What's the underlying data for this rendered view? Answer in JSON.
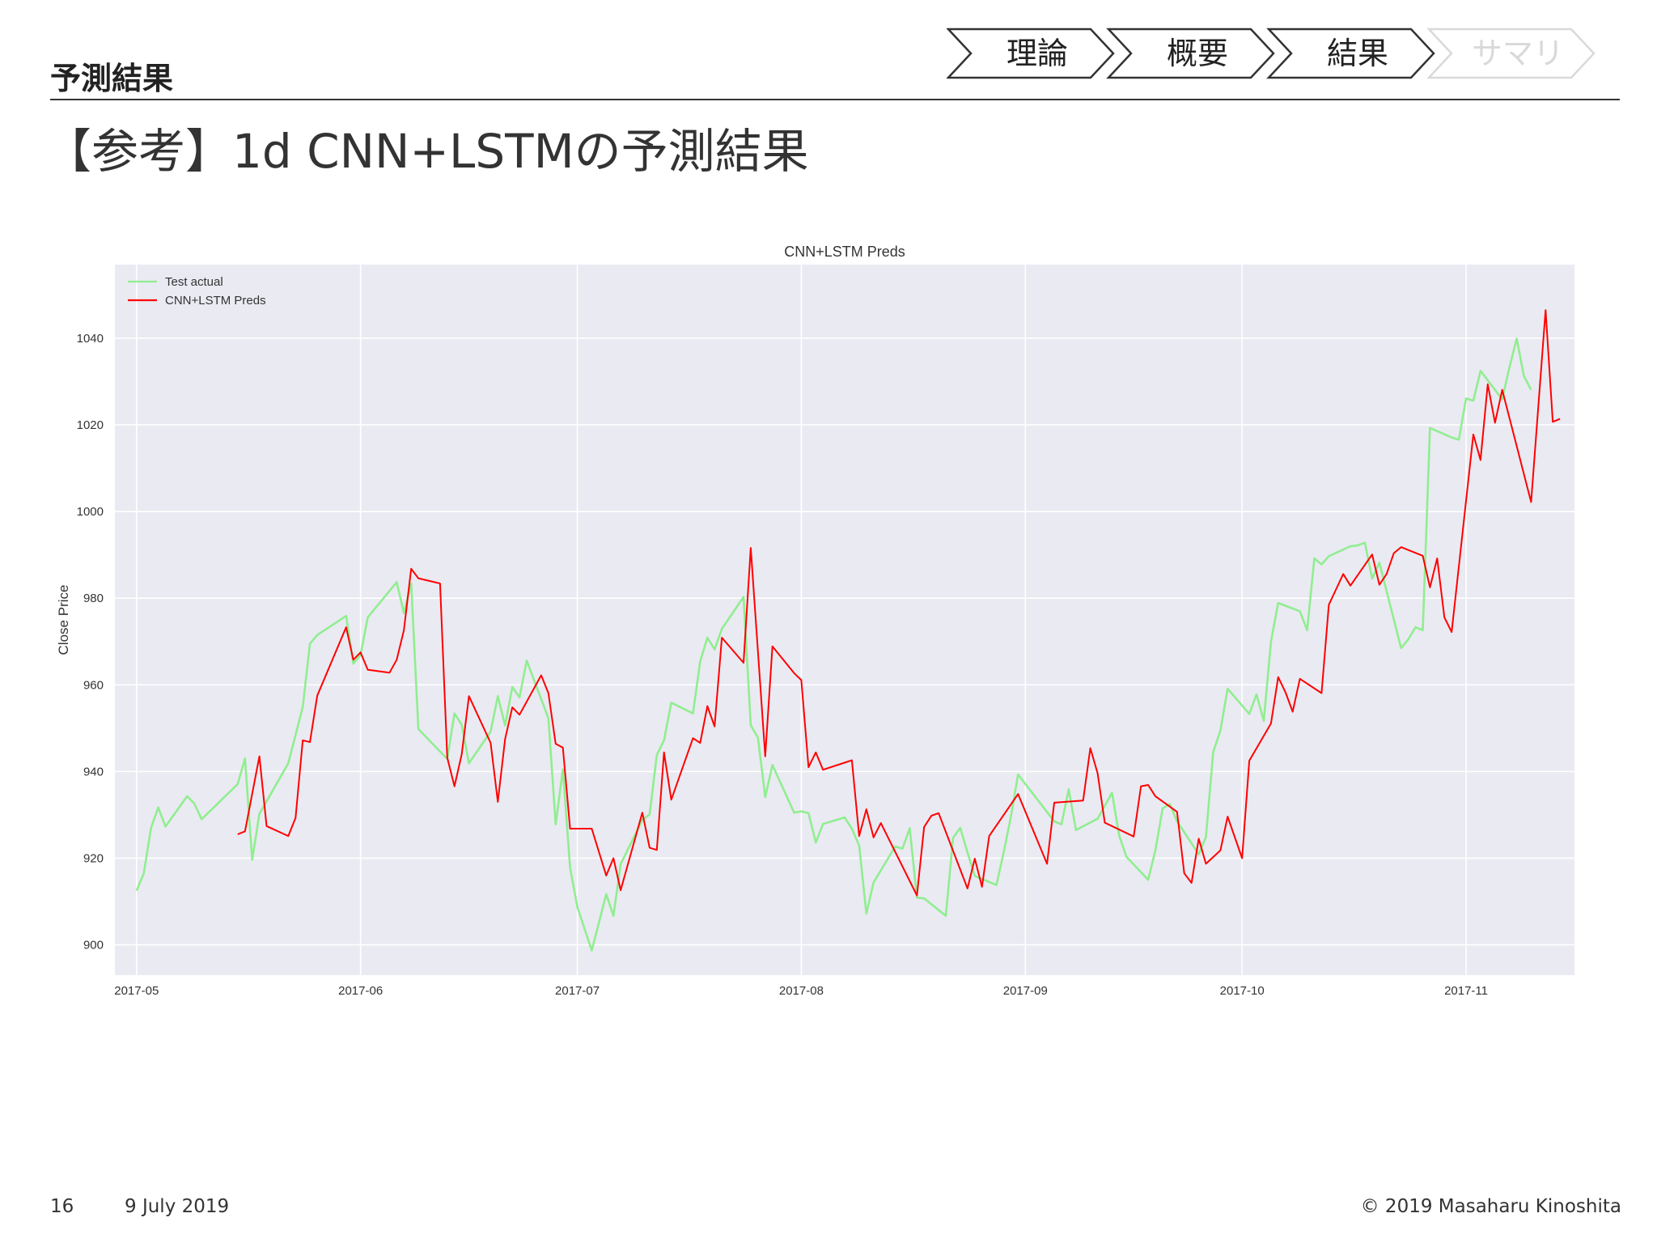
{
  "header": {
    "section_label": "予測結果",
    "title": "【参考】1d CNN+LSTMの予測結果"
  },
  "breadcrumb": {
    "steps": [
      {
        "label": "理論",
        "active": true
      },
      {
        "label": "概要",
        "active": true
      },
      {
        "label": "結果",
        "active": true
      },
      {
        "label": "サマリ",
        "active": false
      }
    ],
    "active_color": "#333333",
    "inactive_color": "#d9d9d9"
  },
  "footer": {
    "page_number": "16",
    "date": "9 July 2019",
    "copyright": "© 2019 Masaharu Kinoshita"
  },
  "chart_data": {
    "type": "line",
    "title": "CNN+LSTM Preds",
    "xlabel": "",
    "ylabel": "Close Price",
    "x_range": [
      "2017-04-28",
      "2017-11-16"
    ],
    "ylim": [
      893,
      1057
    ],
    "x_ticks": [
      "2017-05-01",
      "2017-06-01",
      "2017-07-01",
      "2017-08-01",
      "2017-09-01",
      "2017-10-01",
      "2017-11-01"
    ],
    "x_tick_labels": [
      "2017-05",
      "2017-06",
      "2017-07",
      "2017-08",
      "2017-09",
      "2017-10",
      "2017-11"
    ],
    "y_ticks": [
      900,
      920,
      940,
      960,
      980,
      1000,
      1020,
      1040
    ],
    "y_tick_labels": [
      "900",
      "920",
      "940",
      "960",
      "980",
      "1000",
      "1020",
      "1040"
    ],
    "grid": true,
    "legend_position": "top-left",
    "plot_background": "#eaeaf2",
    "series": [
      {
        "name": "Test actual",
        "color": "#90ee90",
        "points": [
          [
            "2017-05-01",
            912.5
          ],
          [
            "2017-05-02",
            916.5
          ],
          [
            "2017-05-03",
            927.0
          ],
          [
            "2017-05-04",
            931.7
          ],
          [
            "2017-05-05",
            927.3
          ],
          [
            "2017-05-08",
            934.3
          ],
          [
            "2017-05-09",
            932.6
          ],
          [
            "2017-05-10",
            929.0
          ],
          [
            "2017-05-15",
            937.1
          ],
          [
            "2017-05-16",
            943.0
          ],
          [
            "2017-05-17",
            919.6
          ],
          [
            "2017-05-18",
            930.2
          ],
          [
            "2017-05-22",
            941.9
          ],
          [
            "2017-05-24",
            954.9
          ],
          [
            "2017-05-25",
            969.5
          ],
          [
            "2017-05-26",
            971.5
          ],
          [
            "2017-05-30",
            975.9
          ],
          [
            "2017-05-31",
            964.9
          ],
          [
            "2017-06-01",
            966.9
          ],
          [
            "2017-06-02",
            975.6
          ],
          [
            "2017-06-06",
            983.7
          ],
          [
            "2017-06-07",
            976.6
          ],
          [
            "2017-06-08",
            983.4
          ],
          [
            "2017-06-09",
            949.8
          ],
          [
            "2017-06-13",
            942.9
          ],
          [
            "2017-06-14",
            953.4
          ],
          [
            "2017-06-15",
            950.8
          ],
          [
            "2017-06-16",
            941.9
          ],
          [
            "2017-06-19",
            949.2
          ],
          [
            "2017-06-20",
            957.4
          ],
          [
            "2017-06-21",
            950.6
          ],
          [
            "2017-06-22",
            959.5
          ],
          [
            "2017-06-23",
            957.1
          ],
          [
            "2017-06-24",
            965.6
          ],
          [
            "2017-06-27",
            952.3
          ],
          [
            "2017-06-28",
            927.8
          ],
          [
            "2017-06-29",
            940.5
          ],
          [
            "2017-06-30",
            917.8
          ],
          [
            "2017-07-01",
            908.7
          ],
          [
            "2017-07-03",
            898.7
          ],
          [
            "2017-07-05",
            911.7
          ],
          [
            "2017-07-06",
            906.7
          ],
          [
            "2017-07-07",
            918.6
          ],
          [
            "2017-07-10",
            928.8
          ],
          [
            "2017-07-11",
            930.1
          ],
          [
            "2017-07-12",
            943.8
          ],
          [
            "2017-07-13",
            947.2
          ],
          [
            "2017-07-14",
            955.9
          ],
          [
            "2017-07-17",
            953.4
          ],
          [
            "2017-07-18",
            965.4
          ],
          [
            "2017-07-19",
            970.9
          ],
          [
            "2017-07-20",
            968.2
          ],
          [
            "2017-07-21",
            972.9
          ],
          [
            "2017-07-24",
            980.3
          ],
          [
            "2017-07-25",
            950.7
          ],
          [
            "2017-07-26",
            947.8
          ],
          [
            "2017-07-27",
            934.1
          ],
          [
            "2017-07-28",
            941.5
          ],
          [
            "2017-07-31",
            930.5
          ],
          [
            "2017-08-01",
            930.8
          ],
          [
            "2017-08-02",
            930.4
          ],
          [
            "2017-08-03",
            923.6
          ],
          [
            "2017-08-04",
            927.9
          ],
          [
            "2017-08-07",
            929.4
          ],
          [
            "2017-08-08",
            926.8
          ],
          [
            "2017-08-09",
            922.9
          ],
          [
            "2017-08-10",
            907.2
          ],
          [
            "2017-08-11",
            914.4
          ],
          [
            "2017-08-14",
            922.7
          ],
          [
            "2017-08-15",
            922.2
          ],
          [
            "2017-08-16",
            926.9
          ],
          [
            "2017-08-17",
            910.9
          ],
          [
            "2017-08-18",
            910.7
          ],
          [
            "2017-08-21",
            906.7
          ],
          [
            "2017-08-22",
            924.7
          ],
          [
            "2017-08-23",
            927.0
          ],
          [
            "2017-08-24",
            921.3
          ],
          [
            "2017-08-25",
            915.9
          ],
          [
            "2017-08-28",
            913.8
          ],
          [
            "2017-08-29",
            921.3
          ],
          [
            "2017-08-30",
            929.6
          ],
          [
            "2017-08-31",
            939.3
          ],
          [
            "2017-09-05",
            928.5
          ],
          [
            "2017-09-06",
            927.8
          ],
          [
            "2017-09-07",
            935.9
          ],
          [
            "2017-09-08",
            926.5
          ],
          [
            "2017-09-11",
            929.1
          ],
          [
            "2017-09-12",
            932.1
          ],
          [
            "2017-09-13",
            935.1
          ],
          [
            "2017-09-14",
            925.1
          ],
          [
            "2017-09-15",
            920.3
          ],
          [
            "2017-09-18",
            915.0
          ],
          [
            "2017-09-19",
            921.8
          ],
          [
            "2017-09-20",
            931.5
          ],
          [
            "2017-09-21",
            932.5
          ],
          [
            "2017-09-22",
            928.5
          ],
          [
            "2017-09-25",
            920.9
          ],
          [
            "2017-09-26",
            924.9
          ],
          [
            "2017-09-27",
            944.5
          ],
          [
            "2017-09-28",
            949.5
          ],
          [
            "2017-09-29",
            959.1
          ],
          [
            "2017-10-02",
            953.3
          ],
          [
            "2017-10-03",
            957.8
          ],
          [
            "2017-10-04",
            951.7
          ],
          [
            "2017-10-05",
            970.0
          ],
          [
            "2017-10-06",
            978.9
          ],
          [
            "2017-10-09",
            977.0
          ],
          [
            "2017-10-10",
            972.6
          ],
          [
            "2017-10-11",
            989.2
          ],
          [
            "2017-10-12",
            987.8
          ],
          [
            "2017-10-13",
            989.7
          ],
          [
            "2017-10-16",
            992.0
          ],
          [
            "2017-10-17",
            992.2
          ],
          [
            "2017-10-18",
            992.8
          ],
          [
            "2017-10-19",
            984.5
          ],
          [
            "2017-10-20",
            988.2
          ],
          [
            "2017-10-23",
            968.5
          ],
          [
            "2017-10-24",
            970.5
          ],
          [
            "2017-10-25",
            973.3
          ],
          [
            "2017-10-26",
            972.6
          ],
          [
            "2017-10-27",
            1019.3
          ],
          [
            "2017-10-30",
            1017.1
          ],
          [
            "2017-10-31",
            1016.6
          ],
          [
            "2017-11-01",
            1026.1
          ],
          [
            "2017-11-02",
            1025.6
          ],
          [
            "2017-11-03",
            1032.5
          ],
          [
            "2017-11-06",
            1025.9
          ],
          [
            "2017-11-07",
            1033.3
          ],
          [
            "2017-11-08",
            1039.9
          ],
          [
            "2017-11-09",
            1031.3
          ],
          [
            "2017-11-10",
            1028.1
          ]
        ]
      },
      {
        "name": "CNN+LSTM Preds",
        "color": "#ff0000",
        "points": [
          [
            "2017-05-15",
            925.5
          ],
          [
            "2017-05-16",
            926.2
          ],
          [
            "2017-05-18",
            943.5
          ],
          [
            "2017-05-19",
            927.4
          ],
          [
            "2017-05-22",
            925.1
          ],
          [
            "2017-05-23",
            929.3
          ],
          [
            "2017-05-24",
            947.2
          ],
          [
            "2017-05-25",
            946.8
          ],
          [
            "2017-05-26",
            957.5
          ],
          [
            "2017-05-30",
            973.3
          ],
          [
            "2017-05-31",
            965.8
          ],
          [
            "2017-06-01",
            967.5
          ],
          [
            "2017-06-02",
            963.5
          ],
          [
            "2017-06-05",
            962.8
          ],
          [
            "2017-06-06",
            965.8
          ],
          [
            "2017-06-07",
            972.6
          ],
          [
            "2017-06-08",
            986.8
          ],
          [
            "2017-06-09",
            984.6
          ],
          [
            "2017-06-12",
            983.4
          ],
          [
            "2017-06-13",
            943.2
          ],
          [
            "2017-06-14",
            936.6
          ],
          [
            "2017-06-15",
            944.0
          ],
          [
            "2017-06-16",
            957.4
          ],
          [
            "2017-06-19",
            946.6
          ],
          [
            "2017-06-20",
            933.0
          ],
          [
            "2017-06-21",
            947.5
          ],
          [
            "2017-06-22",
            954.8
          ],
          [
            "2017-06-23",
            953.1
          ],
          [
            "2017-06-26",
            962.2
          ],
          [
            "2017-06-27",
            958.1
          ],
          [
            "2017-06-28",
            946.4
          ],
          [
            "2017-06-29",
            945.5
          ],
          [
            "2017-06-30",
            926.8
          ],
          [
            "2017-07-03",
            926.8
          ],
          [
            "2017-07-05",
            916.0
          ],
          [
            "2017-07-06",
            920.0
          ],
          [
            "2017-07-07",
            912.6
          ],
          [
            "2017-07-10",
            930.5
          ],
          [
            "2017-07-11",
            922.4
          ],
          [
            "2017-07-12",
            921.9
          ],
          [
            "2017-07-13",
            944.4
          ],
          [
            "2017-07-14",
            933.5
          ],
          [
            "2017-07-17",
            947.7
          ],
          [
            "2017-07-18",
            946.6
          ],
          [
            "2017-07-19",
            955.1
          ],
          [
            "2017-07-20",
            950.4
          ],
          [
            "2017-07-21",
            970.9
          ],
          [
            "2017-07-24",
            965.1
          ],
          [
            "2017-07-25",
            991.6
          ],
          [
            "2017-07-27",
            943.5
          ],
          [
            "2017-07-28",
            968.9
          ],
          [
            "2017-07-31",
            962.7
          ],
          [
            "2017-08-01",
            961.1
          ],
          [
            "2017-08-02",
            941.0
          ],
          [
            "2017-08-03",
            944.4
          ],
          [
            "2017-08-04",
            940.4
          ],
          [
            "2017-08-08",
            942.6
          ],
          [
            "2017-08-09",
            925.1
          ],
          [
            "2017-08-10",
            931.3
          ],
          [
            "2017-08-11",
            924.8
          ],
          [
            "2017-08-12",
            928.1
          ],
          [
            "2017-08-17",
            911.4
          ],
          [
            "2017-08-18",
            927.2
          ],
          [
            "2017-08-19",
            929.8
          ],
          [
            "2017-08-20",
            930.4
          ],
          [
            "2017-08-24",
            913.0
          ],
          [
            "2017-08-25",
            919.9
          ],
          [
            "2017-08-26",
            913.4
          ],
          [
            "2017-08-27",
            925.1
          ],
          [
            "2017-08-31",
            934.8
          ],
          [
            "2017-09-04",
            918.7
          ],
          [
            "2017-09-05",
            932.8
          ],
          [
            "2017-09-09",
            933.3
          ],
          [
            "2017-09-10",
            945.4
          ],
          [
            "2017-09-11",
            939.6
          ],
          [
            "2017-09-12",
            928.2
          ],
          [
            "2017-09-16",
            925.0
          ],
          [
            "2017-09-17",
            936.6
          ],
          [
            "2017-09-18",
            936.9
          ],
          [
            "2017-09-19",
            934.3
          ],
          [
            "2017-09-22",
            930.7
          ],
          [
            "2017-09-23",
            916.5
          ],
          [
            "2017-09-24",
            914.3
          ],
          [
            "2017-09-25",
            924.5
          ],
          [
            "2017-09-26",
            918.7
          ],
          [
            "2017-09-28",
            921.8
          ],
          [
            "2017-09-29",
            929.6
          ],
          [
            "2017-10-01",
            920.0
          ],
          [
            "2017-10-02",
            942.5
          ],
          [
            "2017-10-05",
            951.1
          ],
          [
            "2017-10-06",
            961.8
          ],
          [
            "2017-10-07",
            958.3
          ],
          [
            "2017-10-08",
            953.8
          ],
          [
            "2017-10-09",
            961.4
          ],
          [
            "2017-10-12",
            958.1
          ],
          [
            "2017-10-13",
            978.5
          ],
          [
            "2017-10-15",
            985.6
          ],
          [
            "2017-10-16",
            982.9
          ],
          [
            "2017-10-19",
            990.1
          ],
          [
            "2017-10-20",
            983.1
          ],
          [
            "2017-10-21",
            985.6
          ],
          [
            "2017-10-22",
            990.4
          ],
          [
            "2017-10-23",
            991.8
          ],
          [
            "2017-10-26",
            989.8
          ],
          [
            "2017-10-27",
            982.5
          ],
          [
            "2017-10-28",
            989.2
          ],
          [
            "2017-10-29",
            975.6
          ],
          [
            "2017-10-30",
            972.2
          ],
          [
            "2017-11-02",
            1017.8
          ],
          [
            "2017-11-03",
            1011.9
          ],
          [
            "2017-11-04",
            1029.4
          ],
          [
            "2017-11-05",
            1020.5
          ],
          [
            "2017-11-06",
            1028.1
          ],
          [
            "2017-11-10",
            1002.2
          ],
          [
            "2017-11-12",
            1046.5
          ],
          [
            "2017-11-13",
            1020.7
          ],
          [
            "2017-11-14",
            1021.4
          ]
        ]
      }
    ]
  }
}
